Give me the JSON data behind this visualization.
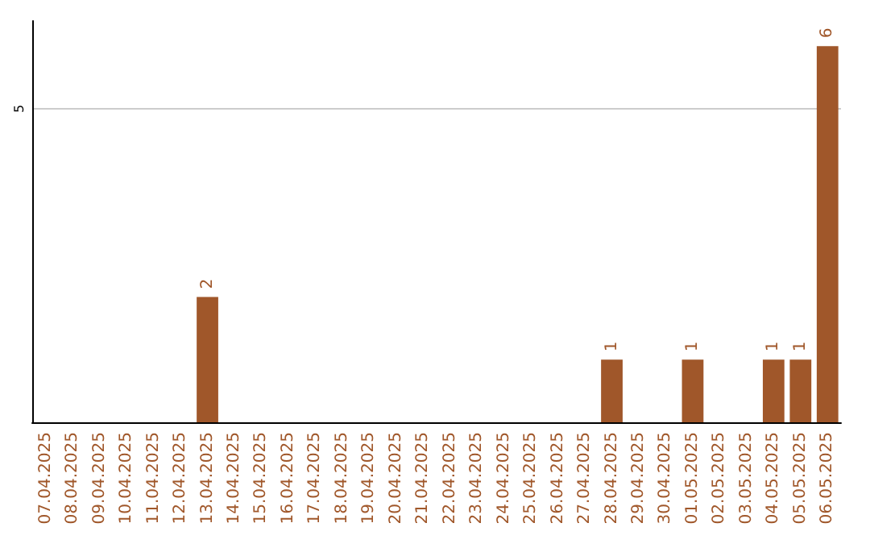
{
  "chart_data": {
    "type": "bar",
    "categories": [
      "07.04.2025",
      "08.04.2025",
      "09.04.2025",
      "10.04.2025",
      "11.04.2025",
      "12.04.2025",
      "13.04.2025",
      "14.04.2025",
      "15.04.2025",
      "16.04.2025",
      "17.04.2025",
      "18.04.2025",
      "19.04.2025",
      "20.04.2025",
      "21.04.2025",
      "22.04.2025",
      "23.04.2025",
      "24.04.2025",
      "25.04.2025",
      "26.04.2025",
      "27.04.2025",
      "28.04.2025",
      "29.04.2025",
      "30.04.2025",
      "01.05.2025",
      "02.05.2025",
      "03.05.2025",
      "04.05.2025",
      "05.05.2025",
      "06.05.2025"
    ],
    "values": [
      0,
      0,
      0,
      0,
      0,
      0,
      2,
      0,
      0,
      0,
      0,
      0,
      0,
      0,
      0,
      0,
      0,
      0,
      0,
      0,
      0,
      1,
      0,
      0,
      1,
      0,
      0,
      1,
      1,
      6
    ],
    "value_labels": [
      null,
      null,
      null,
      null,
      null,
      null,
      "2",
      null,
      null,
      null,
      null,
      null,
      null,
      null,
      null,
      null,
      null,
      null,
      null,
      null,
      null,
      "1",
      null,
      null,
      "1",
      null,
      null,
      "1",
      "1",
      "6"
    ],
    "color": "#a0572a",
    "ylim": [
      0,
      6.4
    ],
    "yticks": [
      5
    ],
    "grid": "y"
  }
}
